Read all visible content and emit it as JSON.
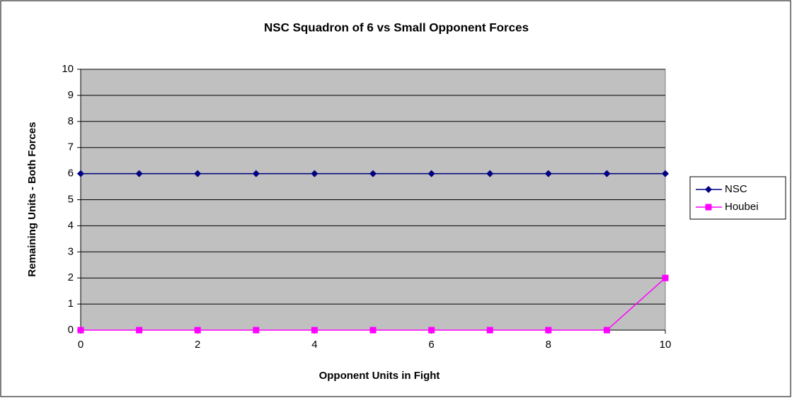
{
  "chart_data": {
    "type": "line",
    "title": "NSC Squadron of 6 vs Small Opponent Forces",
    "xlabel": "Opponent Units in Fight",
    "ylabel": "Remaining Units - Both Forces",
    "x": [
      0,
      1,
      2,
      3,
      4,
      5,
      6,
      7,
      8,
      9,
      10
    ],
    "series": [
      {
        "name": "NSC",
        "color": "#000080",
        "marker": "diamond",
        "values": [
          6,
          6,
          6,
          6,
          6,
          6,
          6,
          6,
          6,
          6,
          6
        ]
      },
      {
        "name": "Houbei",
        "color": "#ff00ff",
        "marker": "square",
        "values": [
          0,
          0,
          0,
          0,
          0,
          0,
          0,
          0,
          0,
          0,
          2
        ]
      }
    ],
    "xlim": [
      0,
      10
    ],
    "xticks": [
      0,
      2,
      4,
      6,
      8,
      10
    ],
    "ylim": [
      0,
      10
    ],
    "yticks": [
      0,
      1,
      2,
      3,
      4,
      5,
      6,
      7,
      8,
      9,
      10
    ],
    "grid": true,
    "legend": "right"
  }
}
